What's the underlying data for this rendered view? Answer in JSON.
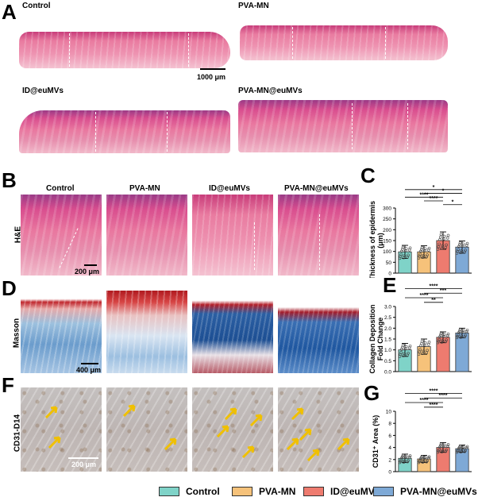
{
  "panels": {
    "A": {
      "letter": "A",
      "titles": [
        "Control",
        "PVA-MN",
        "ID@euMVs",
        "PVA-MN@euMVs"
      ],
      "scale": "1000 μm"
    },
    "B": {
      "letter": "B",
      "columns": [
        "Control",
        "PVA-MN",
        "ID@euMVs",
        "PVA-MN@euMVs"
      ],
      "row_label": "H&E",
      "scale": "200 μm"
    },
    "C": {
      "letter": "C"
    },
    "D": {
      "letter": "D",
      "row_label": "Masson",
      "scale": "400 μm"
    },
    "E": {
      "letter": "E"
    },
    "F": {
      "letter": "F",
      "row_label": "CD31-D14",
      "scale": "200 μm"
    },
    "G": {
      "letter": "G"
    }
  },
  "legend": [
    {
      "label": "Control",
      "color": "#7fd3c8"
    },
    {
      "label": "PVA-MN",
      "color": "#f6c27a"
    },
    {
      "label": "ID@euMVs",
      "color": "#ee7b6f"
    },
    {
      "label": "PVA-MN@euMVs",
      "color": "#7ea9d6"
    }
  ],
  "arrow_color": "#f0c000",
  "chart_data": [
    {
      "id": "C",
      "type": "bar",
      "ylabel": "Thickness of epidermis\n(μm)",
      "ylim": [
        0,
        300
      ],
      "yticks": [
        0,
        50,
        100,
        150,
        200,
        250,
        300
      ],
      "categories": [
        "Control",
        "PVA-MN",
        "ID@euMVs",
        "PVA-MN@euMVs"
      ],
      "values": [
        98,
        98,
        150,
        120
      ],
      "errors": [
        30,
        28,
        40,
        28
      ],
      "colors": [
        "#7fd3c8",
        "#f6c27a",
        "#ee7b6f",
        "#7ea9d6"
      ],
      "significance": [
        {
          "from": 0,
          "to": 3,
          "label": "*"
        },
        {
          "from": 1,
          "to": 3,
          "label": "*"
        },
        {
          "from": 0,
          "to": 2,
          "label": "****"
        },
        {
          "from": 1,
          "to": 2,
          "label": "****"
        },
        {
          "from": 2,
          "to": 3,
          "label": "*"
        }
      ]
    },
    {
      "id": "E",
      "type": "bar",
      "ylabel": "Collagen Deposition\nFold Change",
      "ylim": [
        0,
        3.0
      ],
      "yticks": [
        0.0,
        0.5,
        1.0,
        1.5,
        2.0,
        2.5,
        3.0
      ],
      "categories": [
        "Control",
        "PVA-MN",
        "ID@euMVs",
        "PVA-MN@euMVs"
      ],
      "values": [
        1.0,
        1.15,
        1.58,
        1.78
      ],
      "errors": [
        0.3,
        0.35,
        0.25,
        0.22
      ],
      "colors": [
        "#7fd3c8",
        "#f6c27a",
        "#ee7b6f",
        "#7ea9d6"
      ],
      "significance": [
        {
          "from": 0,
          "to": 3,
          "label": "****"
        },
        {
          "from": 1,
          "to": 3,
          "label": "***"
        },
        {
          "from": 0,
          "to": 2,
          "label": "****"
        },
        {
          "from": 1,
          "to": 2,
          "label": "**"
        }
      ]
    },
    {
      "id": "G",
      "type": "bar",
      "ylabel": "CD31⁺ Area (%)",
      "ylim": [
        0,
        10
      ],
      "yticks": [
        0,
        2,
        4,
        6,
        8,
        10
      ],
      "categories": [
        "Control",
        "PVA-MN",
        "ID@euMVs",
        "PVA-MN@euMVs"
      ],
      "values": [
        2.2,
        2.1,
        4.0,
        3.8
      ],
      "errors": [
        0.7,
        0.6,
        0.8,
        0.6
      ],
      "colors": [
        "#7fd3c8",
        "#f6c27a",
        "#ee7b6f",
        "#7ea9d6"
      ],
      "significance": [
        {
          "from": 0,
          "to": 3,
          "label": "****"
        },
        {
          "from": 1,
          "to": 3,
          "label": "****"
        },
        {
          "from": 0,
          "to": 2,
          "label": "****"
        },
        {
          "from": 1,
          "to": 2,
          "label": "****"
        }
      ]
    }
  ]
}
